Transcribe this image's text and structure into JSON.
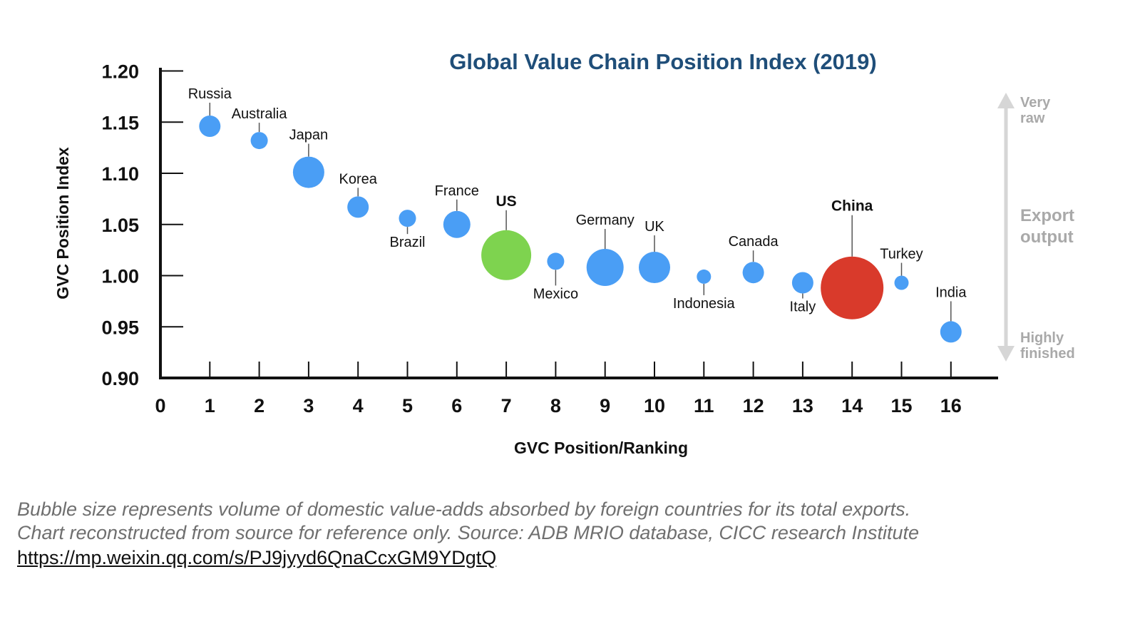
{
  "chart_data": {
    "type": "scatter",
    "title": "Global Value Chain Position Index (2019)",
    "xlabel": "GVC Position/Ranking",
    "ylabel": "GVC Position Index",
    "xlim": [
      0,
      17
    ],
    "ylim": [
      0.9,
      1.2
    ],
    "x_ticks": [
      "0",
      "1",
      "2",
      "3",
      "4",
      "5",
      "6",
      "7",
      "8",
      "9",
      "10",
      "11",
      "12",
      "13",
      "14",
      "15",
      "16"
    ],
    "y_ticks": [
      "0.90",
      "0.95",
      "1.00",
      "1.05",
      "1.10",
      "1.15",
      "1.20"
    ],
    "grid": false,
    "points": [
      {
        "label": "Russia",
        "x": 1,
        "y": 1.146,
        "size": 15,
        "color": "#4a9ef5",
        "bold": false
      },
      {
        "label": "Australia",
        "x": 2,
        "y": 1.132,
        "size": 12,
        "color": "#4a9ef5",
        "bold": false
      },
      {
        "label": "Japan",
        "x": 3,
        "y": 1.101,
        "size": 22,
        "color": "#4a9ef5",
        "bold": false
      },
      {
        "label": "Korea",
        "x": 4,
        "y": 1.067,
        "size": 15,
        "color": "#4a9ef5",
        "bold": false
      },
      {
        "label": "Brazil",
        "x": 5,
        "y": 1.056,
        "size": 12,
        "color": "#4a9ef5",
        "bold": false
      },
      {
        "label": "France",
        "x": 6,
        "y": 1.05,
        "size": 19,
        "color": "#4a9ef5",
        "bold": false
      },
      {
        "label": "US",
        "x": 7,
        "y": 1.02,
        "size": 35,
        "color": "#7ed34f",
        "bold": true
      },
      {
        "label": "Mexico",
        "x": 8,
        "y": 1.014,
        "size": 12,
        "color": "#4a9ef5",
        "bold": false
      },
      {
        "label": "Germany",
        "x": 9,
        "y": 1.008,
        "size": 26,
        "color": "#4a9ef5",
        "bold": false
      },
      {
        "label": "UK",
        "x": 10,
        "y": 1.008,
        "size": 22,
        "color": "#4a9ef5",
        "bold": false
      },
      {
        "label": "Indonesia",
        "x": 11,
        "y": 0.999,
        "size": 10,
        "color": "#4a9ef5",
        "bold": false
      },
      {
        "label": "Canada",
        "x": 12,
        "y": 1.003,
        "size": 15,
        "color": "#4a9ef5",
        "bold": false
      },
      {
        "label": "Italy",
        "x": 13,
        "y": 0.993,
        "size": 15,
        "color": "#4a9ef5",
        "bold": false
      },
      {
        "label": "China",
        "x": 14,
        "y": 0.988,
        "size": 44,
        "color": "#d93a2b",
        "bold": true
      },
      {
        "label": "Turkey",
        "x": 15,
        "y": 0.993,
        "size": 10,
        "color": "#4a9ef5",
        "bold": false
      },
      {
        "label": "India",
        "x": 16,
        "y": 0.945,
        "size": 15,
        "color": "#4a9ef5",
        "bold": false
      }
    ],
    "right_annotation": {
      "top": "Very\nraw",
      "middle": "Export\noutput",
      "bottom": "Highly\nfinished"
    }
  },
  "caption": {
    "line1": "Bubble size represents volume of domestic value-adds absorbed by foreign countries for its total exports.",
    "line2": "Chart reconstructed from source for reference only. Source: ADB MRIO database, CICC research Institute",
    "link": "https://mp.weixin.qq.com/s/PJ9jyyd6QnaCcxGM9YDgtQ"
  },
  "colors": {
    "title": "#1f4e79",
    "axis": "#111111",
    "annotation": "#a9a9a9",
    "default_bubble": "#4a9ef5"
  }
}
